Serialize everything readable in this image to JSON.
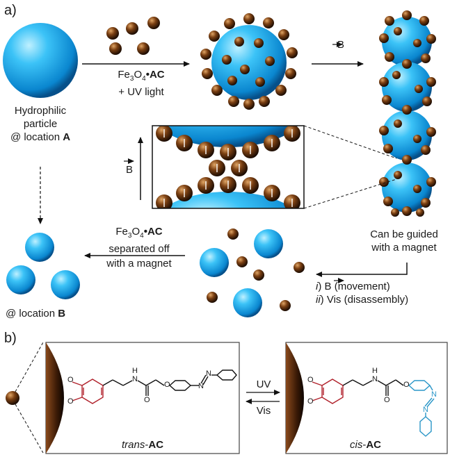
{
  "panel_a": "a)",
  "panel_b": "b)",
  "hydrophilic": [
    "Hydrophilic",
    "particle",
    "@ location ",
    "A"
  ],
  "reagent": [
    "Fe",
    "3",
    "O",
    "4",
    "•",
    "AC",
    "+ UV light"
  ],
  "bfield": "B",
  "guided": [
    "Can be guided",
    "with a magnet"
  ],
  "separated": [
    "Fe",
    "3",
    "O",
    "4",
    "•",
    "AC",
    "separated off",
    "with a magnet"
  ],
  "steps": [
    "i",
    ") ",
    "B",
    " (movement)",
    "ii",
    ") Vis (disassembly)"
  ],
  "locationB": [
    "@ location ",
    "B"
  ],
  "uv": "UV",
  "vis": "Vis",
  "trans": [
    "trans",
    "-",
    "AC"
  ],
  "cis": [
    "cis",
    "-",
    "AC"
  ],
  "chem": {
    "O": "O",
    "N": "N",
    "H": "H"
  },
  "colors": {
    "blue": "#1aa6e8",
    "brown": "#5a2e0f",
    "red": "#b0202a",
    "cyan": "#2a96c8"
  }
}
